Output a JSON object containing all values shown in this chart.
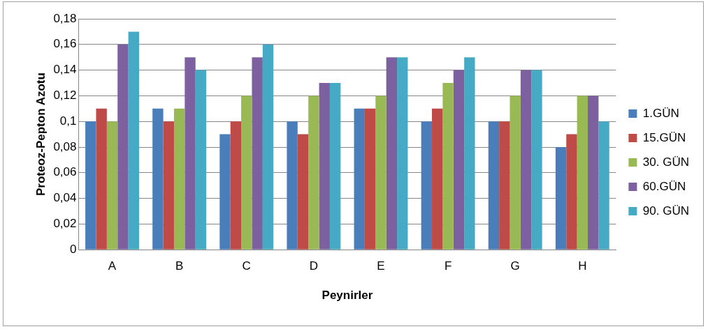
{
  "chart_data": {
    "type": "bar",
    "xlabel": "Peynirler",
    "ylabel": "Proteoz-Pepton Azotu",
    "categories": [
      "A",
      "B",
      "C",
      "D",
      "E",
      "F",
      "G",
      "H"
    ],
    "series": [
      {
        "name": "1.GÜN",
        "color": "#4a7ebb",
        "values": [
          0.1,
          0.11,
          0.09,
          0.1,
          0.11,
          0.1,
          0.1,
          0.08
        ]
      },
      {
        "name": "15.GÜN",
        "color": "#be4b48",
        "values": [
          0.11,
          0.1,
          0.1,
          0.09,
          0.11,
          0.11,
          0.1,
          0.09
        ]
      },
      {
        "name": "30. GÜN",
        "color": "#98b954",
        "values": [
          0.1,
          0.11,
          0.12,
          0.12,
          0.12,
          0.13,
          0.12,
          0.12
        ]
      },
      {
        "name": "60.GÜN",
        "color": "#7d60a0",
        "values": [
          0.16,
          0.15,
          0.15,
          0.13,
          0.15,
          0.14,
          0.14,
          0.12
        ]
      },
      {
        "name": "90. GÜN",
        "color": "#46aac5",
        "values": [
          0.17,
          0.14,
          0.16,
          0.13,
          0.15,
          0.15,
          0.14,
          0.1
        ]
      }
    ],
    "ylim": [
      0,
      0.18
    ],
    "yticks": [
      0,
      {
        "value": 0.02,
        "label": "0,02"
      },
      {
        "value": 0.04,
        "label": "0,04"
      },
      {
        "value": 0.06,
        "label": "0,06"
      },
      {
        "value": 0.08,
        "label": "0,08"
      },
      {
        "value": 0.1,
        "label": "0,1"
      },
      {
        "value": 0.12,
        "label": "0,12"
      },
      {
        "value": 0.14,
        "label": "0,14"
      },
      {
        "value": 0.16,
        "label": "0,16"
      },
      {
        "value": 0.18,
        "label": "0,18"
      }
    ],
    "grid": "y",
    "legend": "right"
  }
}
